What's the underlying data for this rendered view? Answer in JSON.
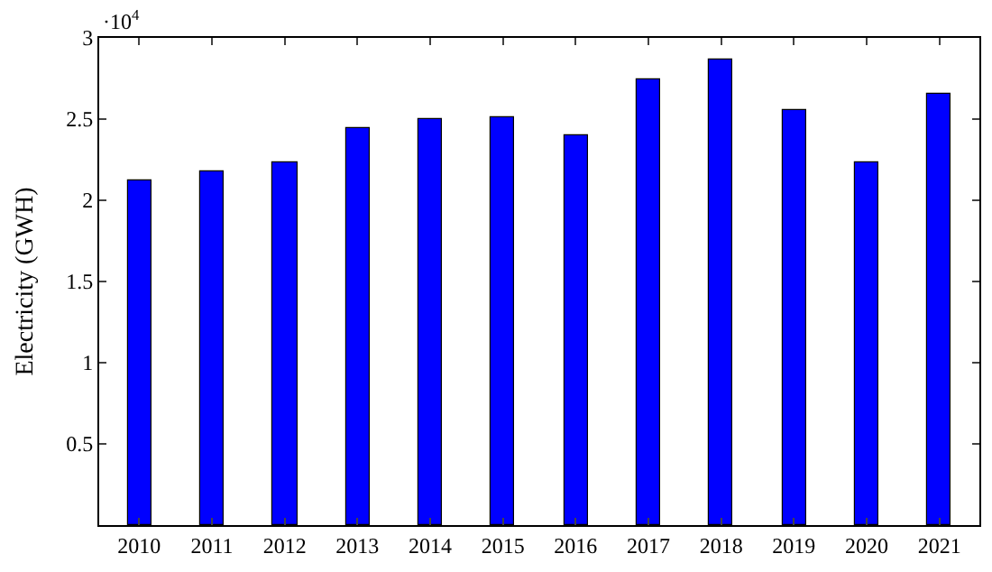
{
  "chart_data": {
    "type": "bar",
    "ylabel": "Electricity (GWH)",
    "annotations": [
      "·10$^{4}$"
    ],
    "categories": [
      "2010",
      "2011",
      "2012",
      "2013",
      "2014",
      "2015",
      "2016",
      "2017",
      "2018",
      "2019",
      "2020",
      "2021"
    ],
    "values": [
      2.12,
      2.18,
      2.23,
      2.44,
      2.5,
      2.51,
      2.4,
      2.75,
      2.87,
      2.56,
      2.23,
      2.66
    ],
    "color": "#0000ff",
    "ylim": [
      0,
      3
    ],
    "yticks": [
      0.5,
      1,
      1.5,
      2,
      2.5,
      3
    ],
    "grid": false
  }
}
